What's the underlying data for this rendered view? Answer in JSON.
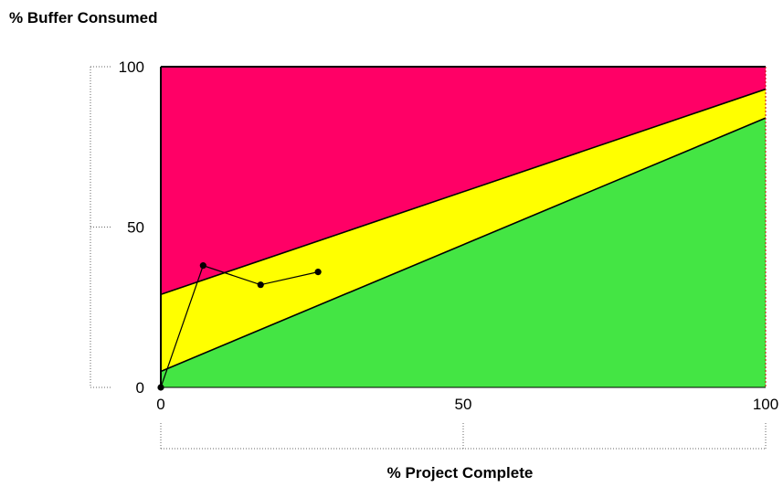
{
  "chart_data": {
    "type": "area",
    "title": "",
    "xlabel": "% Project Complete",
    "ylabel": "% Buffer Consumed",
    "xlim": [
      0,
      100
    ],
    "ylim": [
      0,
      100
    ],
    "x_ticks": [
      "0",
      "50",
      "100"
    ],
    "y_ticks": [
      "0",
      "50",
      "100"
    ],
    "zones": [
      {
        "name": "red",
        "color": "#ff0066",
        "lower_boundary": "yellow_top",
        "upper": 100
      },
      {
        "name": "yellow",
        "color": "#ffff00",
        "boundary_start": [
          0,
          29
        ],
        "boundary_end": [
          100,
          93
        ]
      },
      {
        "name": "green",
        "color": "#44e544",
        "boundary_start": [
          0,
          5
        ],
        "boundary_end": [
          100,
          84
        ]
      }
    ],
    "series": [
      {
        "x": [
          0,
          7,
          16.5,
          26
        ],
        "y": [
          0,
          38,
          32,
          36
        ],
        "color": "#000000"
      }
    ]
  }
}
